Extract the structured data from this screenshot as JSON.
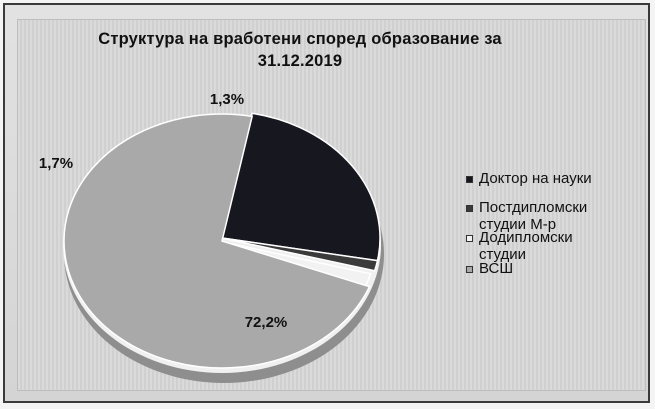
{
  "chart_data": {
    "type": "pie",
    "title_lines": [
      "Структура на вработени според образование  за",
      "31.12.2019"
    ],
    "slices": [
      {
        "name": "Доктор на науки",
        "value": 24.8,
        "label": "",
        "color": "#17171f"
      },
      {
        "name": "Постдипломски студии М-р",
        "value": 1.3,
        "label": "1,3%",
        "color": "#3a3a3a"
      },
      {
        "name": "Додипломски студии",
        "value": 1.7,
        "label": "1,7%",
        "color": "#f2f2f2"
      },
      {
        "name": "ВСШ",
        "value": 72.2,
        "label": "72,2%",
        "color": "#a9a9a9"
      }
    ],
    "legend": [
      {
        "lines": [
          "Доктор на науки"
        ],
        "color": "#17171f"
      },
      {
        "lines": [
          "Постдипломски",
          "студии М-р"
        ],
        "color": "#3a3a3a"
      },
      {
        "lines": [
          "Додипломски",
          "студии"
        ],
        "color": "#f2f2f2"
      },
      {
        "lines": [
          "ВСШ"
        ],
        "color": "#a9a9a9"
      }
    ],
    "legend_position": "right"
  }
}
